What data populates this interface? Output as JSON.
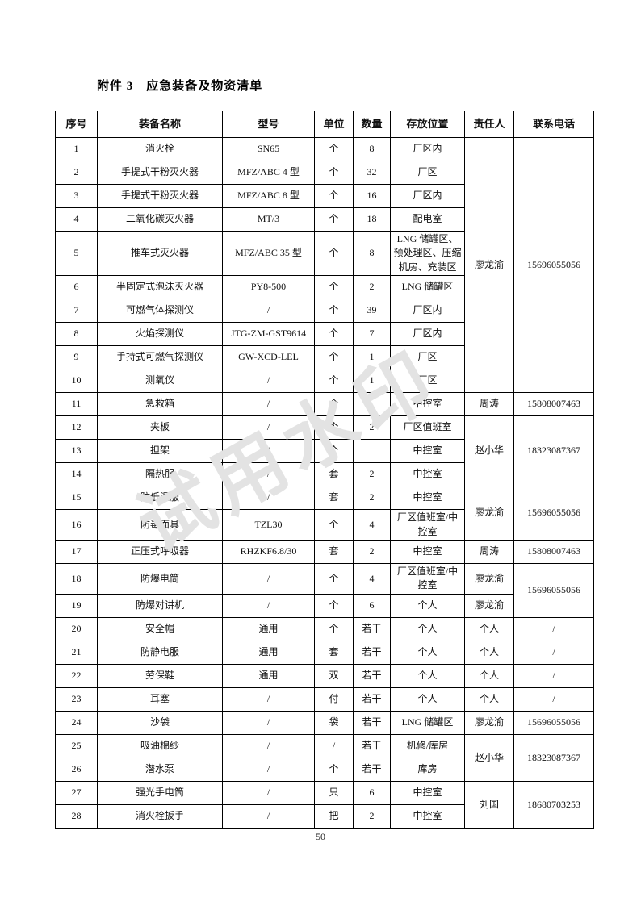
{
  "page": {
    "title": "附件 3　应急装备及物资清单",
    "page_number": "50",
    "watermark": "试用水印"
  },
  "colors": {
    "text": "#1a1a1a",
    "border": "#000000",
    "watermark": "#e3e3e3",
    "background": "#ffffff"
  },
  "table": {
    "headers": [
      "序号",
      "装备名称",
      "型号",
      "单位",
      "数量",
      "存放位置",
      "责任人",
      "联系电话"
    ],
    "rows": [
      {
        "no": "1",
        "name": "消火栓",
        "model": "SN65",
        "unit": "个",
        "qty": "8",
        "loc": "厂区内",
        "resp": {
          "text": "廖龙渝",
          "rowspan": 10
        },
        "phone": {
          "text": "15696055056",
          "rowspan": 10
        }
      },
      {
        "no": "2",
        "name": "手提式干粉灭火器",
        "model": "MFZ/ABC 4 型",
        "unit": "个",
        "qty": "32",
        "loc": "厂区",
        "resp": null,
        "phone": null
      },
      {
        "no": "3",
        "name": "手提式干粉灭火器",
        "model": "MFZ/ABC 8 型",
        "unit": "个",
        "qty": "16",
        "loc": "厂区内",
        "resp": null,
        "phone": null
      },
      {
        "no": "4",
        "name": "二氧化碳灭火器",
        "model": "MT/3",
        "unit": "个",
        "qty": "18",
        "loc": "配电室",
        "resp": null,
        "phone": null
      },
      {
        "no": "5",
        "name": "推车式灭火器",
        "model": "MFZ/ABC 35 型",
        "unit": "个",
        "qty": "8",
        "loc": "LNG 储罐区、预处理区、压缩机房、充装区",
        "resp": null,
        "phone": null
      },
      {
        "no": "6",
        "name": "半固定式泡沫灭火器",
        "model": "PY8-500",
        "unit": "个",
        "qty": "2",
        "loc": "LNG 储罐区",
        "resp": null,
        "phone": null
      },
      {
        "no": "7",
        "name": "可燃气体探测仪",
        "model": "/",
        "unit": "个",
        "qty": "39",
        "loc": "厂区内",
        "resp": null,
        "phone": null
      },
      {
        "no": "8",
        "name": "火焰探测仪",
        "model": "JTG-ZM-GST9614",
        "unit": "个",
        "qty": "7",
        "loc": "厂区内",
        "resp": null,
        "phone": null
      },
      {
        "no": "9",
        "name": "手持式可燃气探测仪",
        "model": "GW-XCD-LEL",
        "unit": "个",
        "qty": "1",
        "loc": "厂区",
        "resp": null,
        "phone": null
      },
      {
        "no": "10",
        "name": "测氧仪",
        "model": "/",
        "unit": "个",
        "qty": "1",
        "loc": "厂区",
        "resp": null,
        "phone": null
      },
      {
        "no": "11",
        "name": "急救箱",
        "model": "/",
        "unit": "个",
        "qty": "",
        "loc": "中控室",
        "resp": {
          "text": "周涛",
          "rowspan": 1
        },
        "phone": {
          "text": "15808007463",
          "rowspan": 1
        }
      },
      {
        "no": "12",
        "name": "夹板",
        "model": "/",
        "unit": "个",
        "qty": "2",
        "loc": "厂区值班室",
        "resp": {
          "text": "赵小华",
          "rowspan": 3
        },
        "phone": {
          "text": "18323087367",
          "rowspan": 3
        }
      },
      {
        "no": "13",
        "name": "担架",
        "model": "/",
        "unit": "个",
        "qty": "",
        "loc": "中控室",
        "resp": null,
        "phone": null
      },
      {
        "no": "14",
        "name": "隔热服",
        "model": "/",
        "unit": "套",
        "qty": "2",
        "loc": "中控室",
        "resp": null,
        "phone": null
      },
      {
        "no": "15",
        "name": "防低温服",
        "model": "/",
        "unit": "套",
        "qty": "2",
        "loc": "中控室",
        "resp": {
          "text": "廖龙渝",
          "rowspan": 2
        },
        "phone": {
          "text": "15696055056",
          "rowspan": 2
        }
      },
      {
        "no": "16",
        "name": "防毒面具",
        "model": "TZL30",
        "unit": "个",
        "qty": "4",
        "loc": "厂区值班室/中控室",
        "resp": null,
        "phone": null
      },
      {
        "no": "17",
        "name": "正压式呼吸器",
        "model": "RHZKF6.8/30",
        "unit": "套",
        "qty": "2",
        "loc": "中控室",
        "resp": {
          "text": "周涛",
          "rowspan": 1
        },
        "phone": {
          "text": "15808007463",
          "rowspan": 1
        }
      },
      {
        "no": "18",
        "name": "防爆电筒",
        "model": "/",
        "unit": "个",
        "qty": "4",
        "loc": "厂区值班室/中控室",
        "resp": {
          "text": "廖龙渝",
          "rowspan": 1
        },
        "phone": {
          "text": "15696055056",
          "rowspan": 2
        }
      },
      {
        "no": "19",
        "name": "防爆对讲机",
        "model": "/",
        "unit": "个",
        "qty": "6",
        "loc": "个人",
        "resp": {
          "text": "廖龙渝",
          "rowspan": 1
        },
        "phone": null
      },
      {
        "no": "20",
        "name": "安全帽",
        "model": "通用",
        "unit": "个",
        "qty": "若干",
        "loc": "个人",
        "resp": {
          "text": "个人",
          "rowspan": 1
        },
        "phone": {
          "text": "/",
          "rowspan": 1
        }
      },
      {
        "no": "21",
        "name": "防静电服",
        "model": "通用",
        "unit": "套",
        "qty": "若干",
        "loc": "个人",
        "resp": {
          "text": "个人",
          "rowspan": 1
        },
        "phone": {
          "text": "/",
          "rowspan": 1
        }
      },
      {
        "no": "22",
        "name": "劳保鞋",
        "model": "通用",
        "unit": "双",
        "qty": "若干",
        "loc": "个人",
        "resp": {
          "text": "个人",
          "rowspan": 1
        },
        "phone": {
          "text": "/",
          "rowspan": 1
        }
      },
      {
        "no": "23",
        "name": "耳塞",
        "model": "/",
        "unit": "付",
        "qty": "若干",
        "loc": "个人",
        "resp": {
          "text": "个人",
          "rowspan": 1
        },
        "phone": {
          "text": "/",
          "rowspan": 1
        }
      },
      {
        "no": "24",
        "name": "沙袋",
        "model": "/",
        "unit": "袋",
        "qty": "若干",
        "loc": "LNG 储罐区",
        "resp": {
          "text": "廖龙渝",
          "rowspan": 1
        },
        "phone": {
          "text": "15696055056",
          "rowspan": 1
        }
      },
      {
        "no": "25",
        "name": "吸油棉纱",
        "model": "/",
        "unit": "/",
        "qty": "若干",
        "loc": "机修/库房",
        "resp": {
          "text": "赵小华",
          "rowspan": 2
        },
        "phone": {
          "text": "18323087367",
          "rowspan": 2
        }
      },
      {
        "no": "26",
        "name": "潜水泵",
        "model": "/",
        "unit": "个",
        "qty": "若干",
        "loc": "库房",
        "resp": null,
        "phone": null
      },
      {
        "no": "27",
        "name": "强光手电筒",
        "model": "/",
        "unit": "只",
        "qty": "6",
        "loc": "中控室",
        "resp": {
          "text": "刘国",
          "rowspan": 2
        },
        "phone": {
          "text": "18680703253",
          "rowspan": 2
        }
      },
      {
        "no": "28",
        "name": "消火栓扳手",
        "model": "/",
        "unit": "把",
        "qty": "2",
        "loc": "中控室",
        "resp": null,
        "phone": null
      }
    ]
  }
}
